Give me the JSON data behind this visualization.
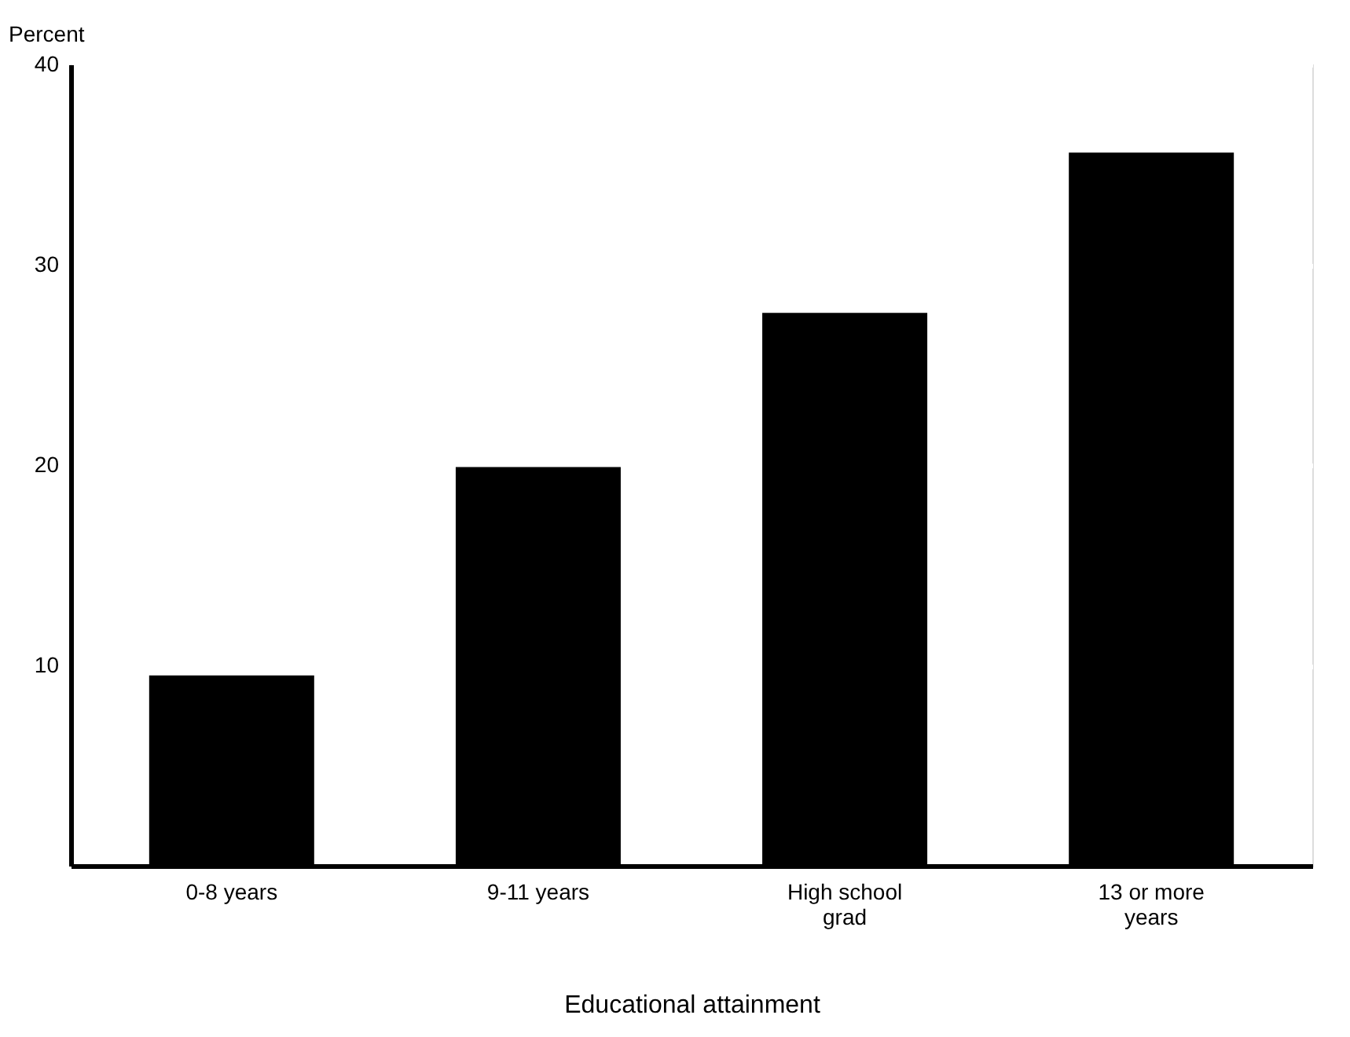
{
  "chart_data": {
    "type": "bar",
    "categories": [
      "0-8 years",
      "9-11 years",
      "High school grad",
      "13 or more years"
    ],
    "values": [
      9.5,
      19.9,
      27.6,
      35.6
    ],
    "color": "#000000",
    "ylabel": "Percent",
    "xlabel": "Educational attainment",
    "ylim": [
      0,
      40
    ],
    "yticks": [
      10,
      20,
      30,
      40
    ],
    "grid": "y"
  }
}
